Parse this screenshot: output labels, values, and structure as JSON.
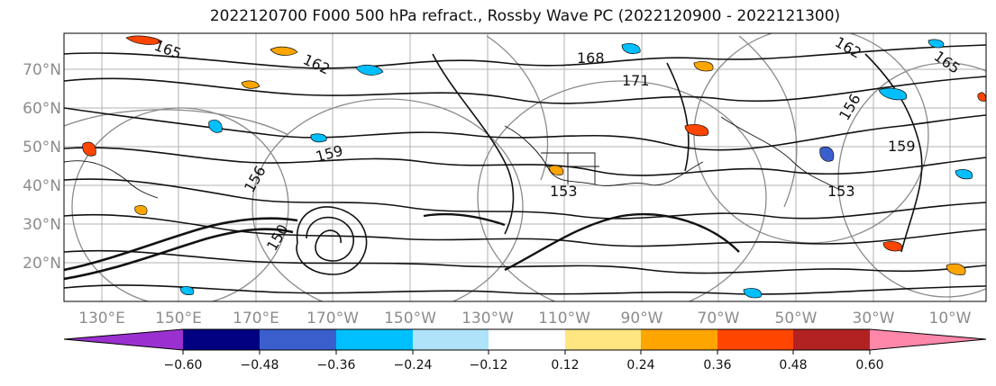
{
  "title": "2022120700 F000 500 hPa refract., Rossby Wave PC (2022120900 - 2022121300)",
  "latitude_labels": [
    "70°N",
    "60°N",
    "50°N",
    "40°N",
    "30°N",
    "20°N"
  ],
  "longitude_labels": [
    "130°E",
    "150°E",
    "170°E",
    "170°W",
    "150°W",
    "130°W",
    "110°W",
    "90°W",
    "70°W",
    "50°W",
    "30°W",
    "10°W"
  ],
  "contour_labels": [
    "165",
    "162",
    "168",
    "171",
    "159",
    "156",
    "153",
    "150",
    "165",
    "162",
    "159",
    "156",
    "153"
  ],
  "colorbar": {
    "ticks": [
      "−0.60",
      "−0.48",
      "−0.36",
      "−0.24",
      "−0.12",
      "0.12",
      "0.24",
      "0.36",
      "0.48",
      "0.60"
    ],
    "colors": [
      "#9b30d0",
      "#000080",
      "#3a5fcd",
      "#00bfff",
      "#afe3fa",
      "#ffffff",
      "#ffe680",
      "#ffa500",
      "#ff4500",
      "#b22222",
      "#ff88aa"
    ]
  }
}
